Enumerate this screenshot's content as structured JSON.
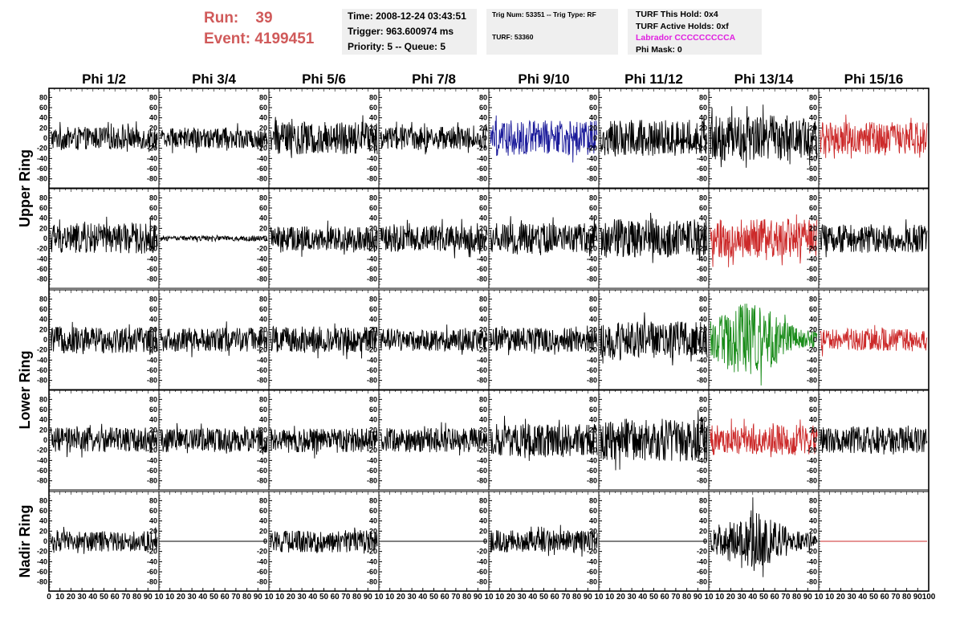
{
  "header": {
    "run_label": "Run:",
    "run_value": "39",
    "event_label": "Event:",
    "event_value": "4199451",
    "time": "Time: 2008-12-24 03:43:51",
    "trigger": "Trigger: 963.600974 ms",
    "priority_queue": "Priority: 5 -- Queue: 5",
    "trig_num_type": "Trig Num: 53351 -- Trig Type: RF",
    "turf": "TURF: 53360",
    "turf_this_hold": "TURF This Hold: 0x4",
    "turf_active_holds": "TURF Active Holds: 0xf",
    "labrador": "Labrador CCCCCCCCCA",
    "phi_mask": "Phi Mask: 0"
  },
  "chart_data": {
    "type": "line",
    "columns": [
      "Phi 1/2",
      "Phi 3/4",
      "Phi 5/6",
      "Phi 7/8",
      "Phi 9/10",
      "Phi 11/12",
      "Phi 13/14",
      "Phi 15/16"
    ],
    "rings": [
      "Upper Ring",
      "Lower Ring",
      "Nadir Ring"
    ],
    "ylim": [
      -90,
      90
    ],
    "yticks": [
      -80,
      -60,
      -40,
      -20,
      0,
      20,
      40,
      60,
      80
    ],
    "ytick_labels": [
      "-80",
      "-60",
      "-40",
      "-20",
      "0",
      "20",
      "40",
      "60",
      "80"
    ],
    "xlim": [
      0,
      100
    ],
    "xticks_first": [
      "0",
      "10",
      "20",
      "30",
      "40",
      "50",
      "60",
      "70",
      "80",
      "90",
      "10"
    ],
    "xticks_mid": [
      "10",
      "20",
      "30",
      "40",
      "50",
      "60",
      "70",
      "80",
      "90",
      "10"
    ],
    "xticks_last": [
      "10",
      "20",
      "30",
      "40",
      "50",
      "60",
      "70",
      "80",
      "90",
      "100"
    ],
    "colors": {
      "black": "#000000",
      "blue": "#1a1a9a",
      "red": "#cc2a2a",
      "green": "#1a8c1a"
    },
    "panels": [
      [
        {
          "amp": 22,
          "color": "black"
        },
        {
          "amp": 20,
          "color": "black"
        },
        {
          "amp": 32,
          "color": "black"
        },
        {
          "amp": 22,
          "color": "black"
        },
        {
          "amp": 35,
          "color": "blue"
        },
        {
          "amp": 36,
          "color": "black"
        },
        {
          "amp": 45,
          "color": "black"
        },
        {
          "amp": 32,
          "color": "red"
        }
      ],
      [
        {
          "amp": 30,
          "color": "black"
        },
        {
          "amp": 5,
          "color": "black"
        },
        {
          "amp": 24,
          "color": "black"
        },
        {
          "amp": 26,
          "color": "black"
        },
        {
          "amp": 30,
          "color": "black"
        },
        {
          "amp": 38,
          "color": "black"
        },
        {
          "amp": 38,
          "color": "red"
        },
        {
          "amp": 28,
          "color": "black"
        }
      ],
      [
        {
          "amp": 26,
          "color": "black"
        },
        {
          "amp": 24,
          "color": "black"
        },
        {
          "amp": 26,
          "color": "black"
        },
        {
          "amp": 22,
          "color": "black"
        },
        {
          "amp": 24,
          "color": "black"
        },
        {
          "amp": 36,
          "color": "black"
        },
        {
          "amp": 55,
          "color": "green"
        },
        {
          "amp": 22,
          "color": "red"
        }
      ],
      [
        {
          "amp": 25,
          "color": "black"
        },
        {
          "amp": 24,
          "color": "black"
        },
        {
          "amp": 24,
          "color": "black"
        },
        {
          "amp": 24,
          "color": "black"
        },
        {
          "amp": 32,
          "color": "black"
        },
        {
          "amp": 42,
          "color": "black"
        },
        {
          "amp": 30,
          "color": "red"
        },
        {
          "amp": 26,
          "color": "black"
        }
      ],
      [
        {
          "amp": 20,
          "color": "black"
        },
        {
          "amp": 0,
          "color": "black"
        },
        {
          "amp": 22,
          "color": "black"
        },
        {
          "amp": 0,
          "color": "black"
        },
        {
          "amp": 22,
          "color": "black"
        },
        {
          "amp": 0,
          "color": "black"
        },
        {
          "amp": 45,
          "color": "black"
        },
        {
          "amp": 0,
          "color": "red"
        }
      ]
    ]
  }
}
